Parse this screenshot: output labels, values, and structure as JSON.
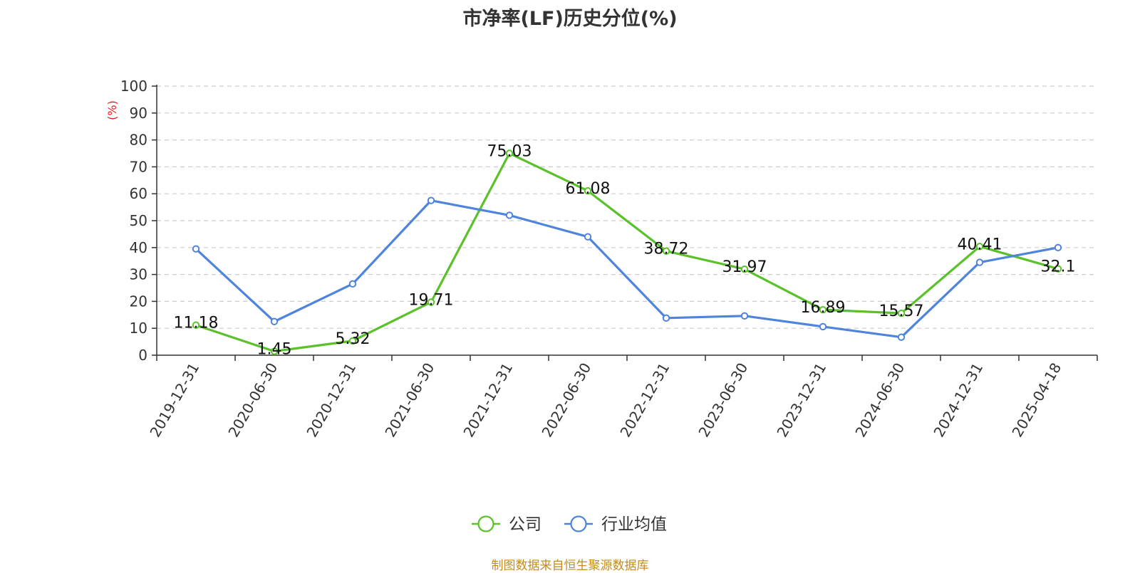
{
  "title": "市净率(LF)历史分位(%)",
  "source_note": "制图数据来自恒生聚源数据库",
  "colors": {
    "company": "#5ac12b",
    "industry": "#4f84dc",
    "axis_unit": "#e02020",
    "grid": "#cccccc"
  },
  "chart_data": {
    "type": "line",
    "title": "市净率(LF)历史分位(%)",
    "ylabel": "(%)",
    "ylim": [
      0,
      100
    ],
    "yticks": [
      0,
      10,
      20,
      30,
      40,
      50,
      60,
      70,
      80,
      90,
      100
    ],
    "grid": true,
    "legend_position": "bottom",
    "categories": [
      "2019-12-31",
      "2020-06-30",
      "2020-12-31",
      "2021-06-30",
      "2021-12-31",
      "2022-06-30",
      "2022-12-31",
      "2023-06-30",
      "2023-12-31",
      "2024-06-30",
      "2024-12-31",
      "2025-04-18"
    ],
    "series": [
      {
        "name": "公司",
        "color": "#5ac12b",
        "show_labels": true,
        "values": [
          11.18,
          1.45,
          5.32,
          19.71,
          75.03,
          61.08,
          38.72,
          31.97,
          16.89,
          15.57,
          40.41,
          32.1
        ]
      },
      {
        "name": "行业均值",
        "color": "#4f84dc",
        "show_labels": false,
        "values": [
          39.5,
          12.5,
          26.5,
          57.5,
          52.0,
          44.0,
          13.8,
          14.6,
          10.6,
          6.7,
          34.5,
          40.0
        ]
      }
    ]
  }
}
